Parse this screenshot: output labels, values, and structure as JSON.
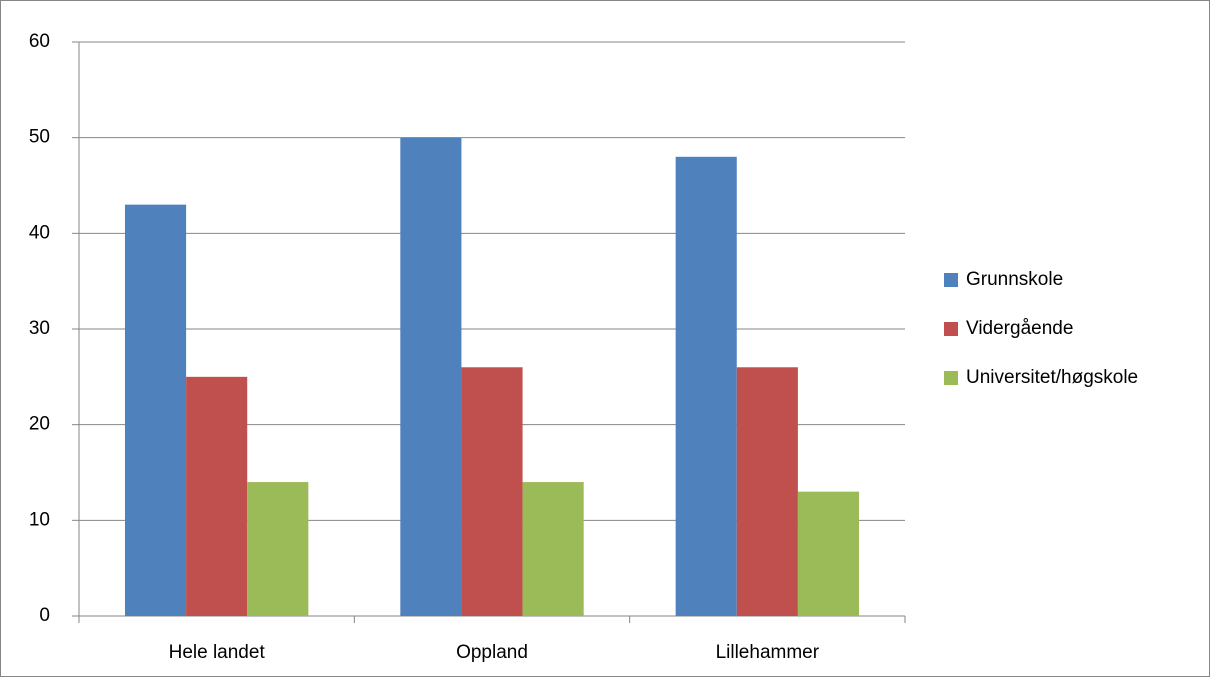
{
  "chart_data": {
    "type": "bar",
    "categories": [
      "Hele landet",
      "Oppland",
      "Lillehammer"
    ],
    "series": [
      {
        "name": "Grunnskole",
        "color": "#4f81bd",
        "values": [
          43,
          50,
          48
        ]
      },
      {
        "name": "Vidergående",
        "color": "#c0504d",
        "values": [
          25,
          26,
          26
        ]
      },
      {
        "name": "Universitet/høgskole",
        "color": "#9bbb59",
        "values": [
          14,
          14,
          13
        ]
      }
    ],
    "ylim": [
      0,
      60
    ],
    "yticks": [
      0,
      10,
      20,
      30,
      40,
      50,
      60
    ],
    "grid": true,
    "legend": "right"
  }
}
